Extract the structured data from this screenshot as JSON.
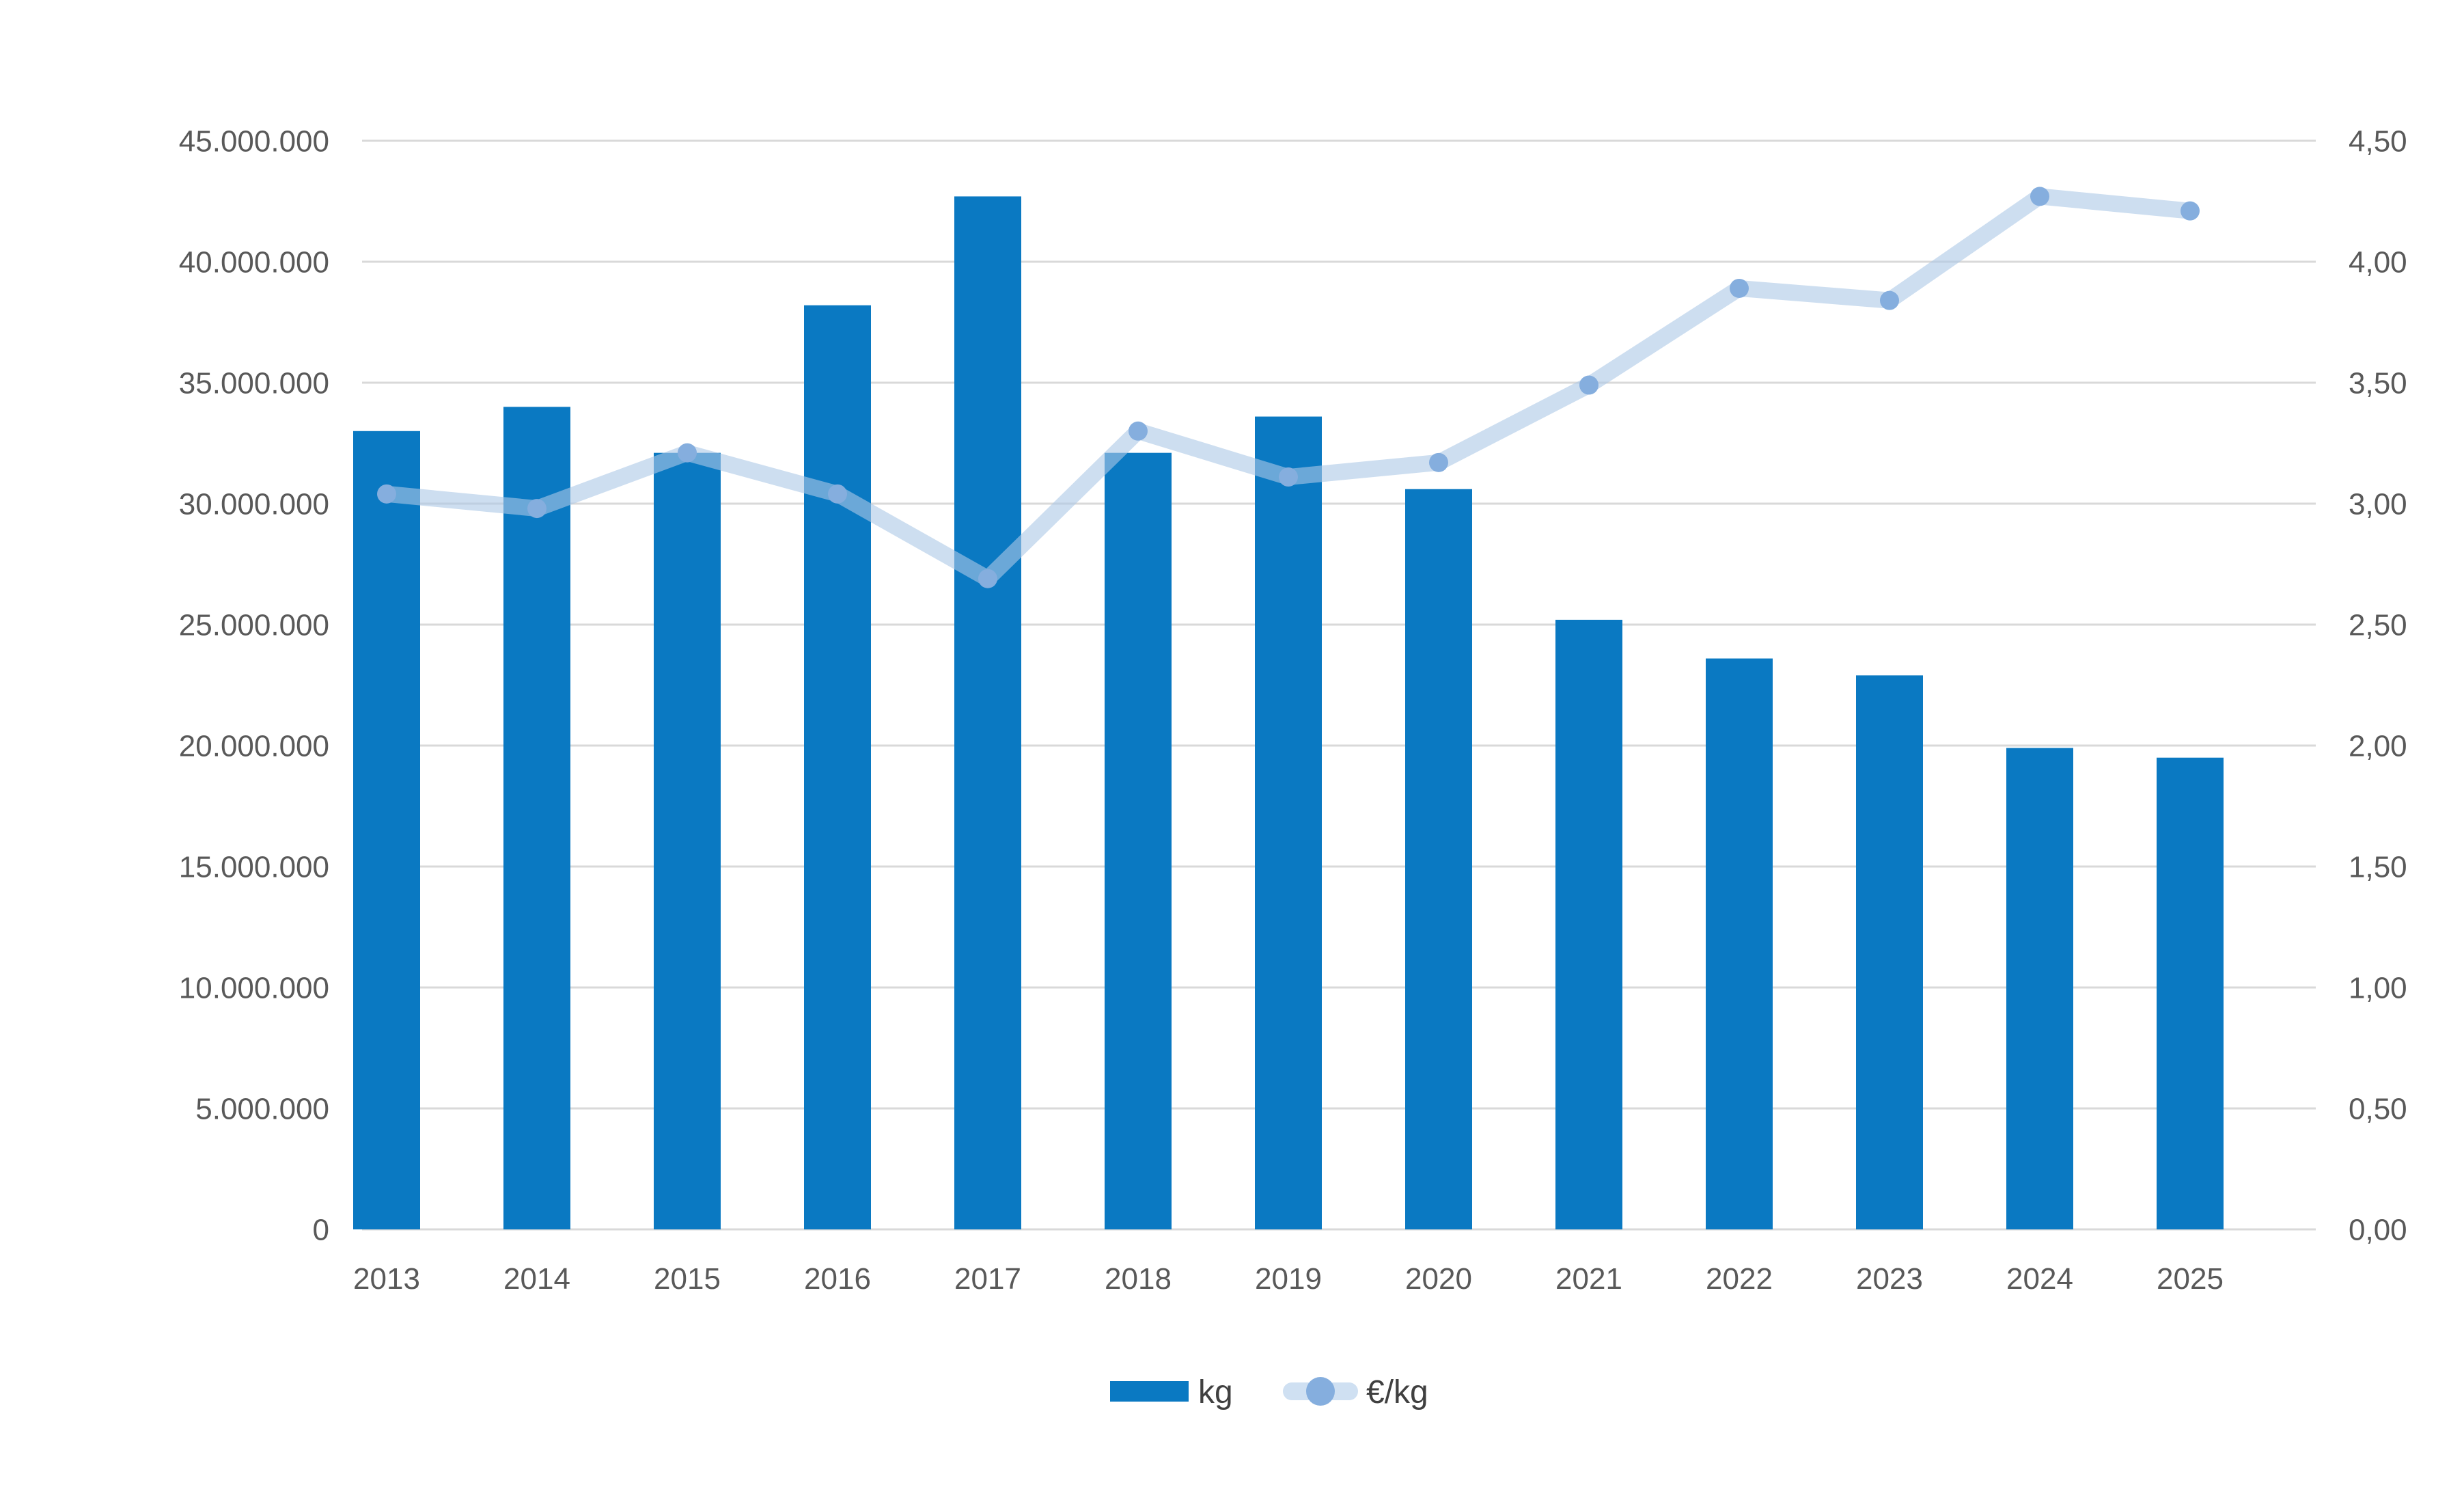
{
  "chart_data": {
    "type": "bar",
    "subtype": "combo-bar-line",
    "title": "",
    "categories": [
      "2013",
      "2014",
      "2015",
      "2016",
      "2017",
      "2018",
      "2019",
      "2020",
      "2021",
      "2022",
      "2023",
      "2024",
      "2025"
    ],
    "series": [
      {
        "name": "kg",
        "type": "bar",
        "axis": "left",
        "values": [
          33000000,
          34000000,
          32100000,
          38200000,
          42700000,
          32100000,
          33600000,
          30600000,
          25200000,
          23600000,
          22900000,
          19900000,
          19500000
        ]
      },
      {
        "name": "€/kg",
        "type": "line",
        "axis": "right",
        "values": [
          3.04,
          2.98,
          3.21,
          3.04,
          2.69,
          3.3,
          3.11,
          3.17,
          3.49,
          3.89,
          3.84,
          4.27,
          4.21
        ]
      }
    ],
    "left_axis": {
      "min": 0,
      "max": 45000000,
      "step": 5000000,
      "tick_labels": [
        "0",
        "5.000.000",
        "10.000.000",
        "15.000.000",
        "20.000.000",
        "25.000.000",
        "30.000.000",
        "35.000.000",
        "40.000.000",
        "45.000.000"
      ]
    },
    "right_axis": {
      "min": 0,
      "max": 4.5,
      "step": 0.5,
      "tick_labels": [
        "0,00",
        "0,50",
        "1,00",
        "1,50",
        "2,00",
        "2,50",
        "3,00",
        "3,50",
        "4,00",
        "4,50"
      ]
    },
    "grid": true,
    "legend_position": "bottom"
  },
  "legend": {
    "kg_label": "kg",
    "eur_per_kg_label": "€/kg"
  },
  "colors": {
    "bar": "#0a79c2",
    "line": "#acc8e6",
    "line_on_white": "#cfe0f2",
    "marker": "#85aede",
    "grid": "#d9d9d9",
    "axis_text": "#595959",
    "legend_text": "#404040",
    "background": "#ffffff"
  }
}
